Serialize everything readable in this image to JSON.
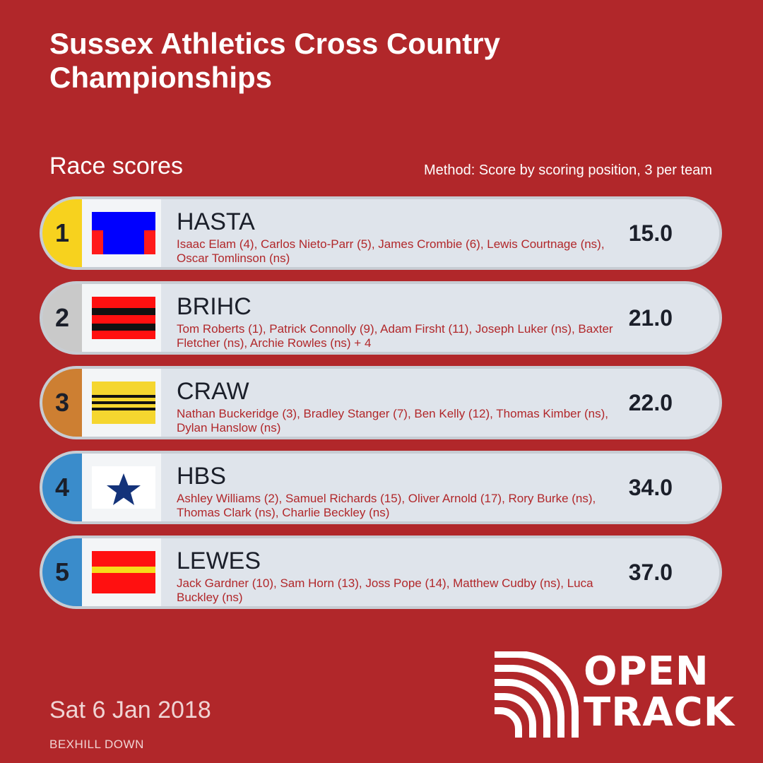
{
  "header": {
    "title_line1": "Sussex Athletics Cross Country",
    "title_line2": "Championships",
    "subtitle": "Race scores",
    "method": "Method: Score by scoring position, 3 per team"
  },
  "results": [
    {
      "rank": "1",
      "team": "HASTA",
      "members": "Isaac Elam (4), Carlos Nieto-Parr (5), James Crombie (6), Lewis Courtnage (ns), Oscar Tomlinson (ns)",
      "score": "15.0",
      "rank_color": "#f7d21e",
      "flag_icon": "hasta-flag-icon"
    },
    {
      "rank": "2",
      "team": "BRIHC",
      "members": "Tom Roberts (1), Patrick Connolly (9), Adam Firsht (11), Joseph Luker (ns), Baxter Fletcher (ns), Archie Rowles (ns) + 4",
      "score": "21.0",
      "rank_color": "#c9c9c9",
      "flag_icon": "brihc-flag-icon"
    },
    {
      "rank": "3",
      "team": "CRAW",
      "members": "Nathan Buckeridge (3), Bradley Stanger (7), Ben Kelly (12), Thomas Kimber (ns), Dylan Hanslow (ns)",
      "score": "22.0",
      "rank_color": "#cd7f32",
      "flag_icon": "craw-flag-icon"
    },
    {
      "rank": "4",
      "team": "HBS",
      "members": "Ashley Williams (2), Samuel Richards (15), Oliver Arnold (17), Rory Burke (ns), Thomas Clark (ns), Charlie Beckley (ns)",
      "score": "34.0",
      "rank_color": "#3a8ccb",
      "flag_icon": "hbs-flag-icon"
    },
    {
      "rank": "5",
      "team": "LEWES",
      "members": "Jack Gardner (10), Sam Horn (13), Joss Pope (14), Matthew Cudby (ns), Luca Buckley (ns)",
      "score": "37.0",
      "rank_color": "#3a8ccb",
      "flag_icon": "lewes-flag-icon"
    }
  ],
  "footer": {
    "date": "Sat 6 Jan 2018",
    "venue": "BEXHILL DOWN",
    "logo_line1": "OPEN",
    "logo_line2": "TRACK"
  }
}
